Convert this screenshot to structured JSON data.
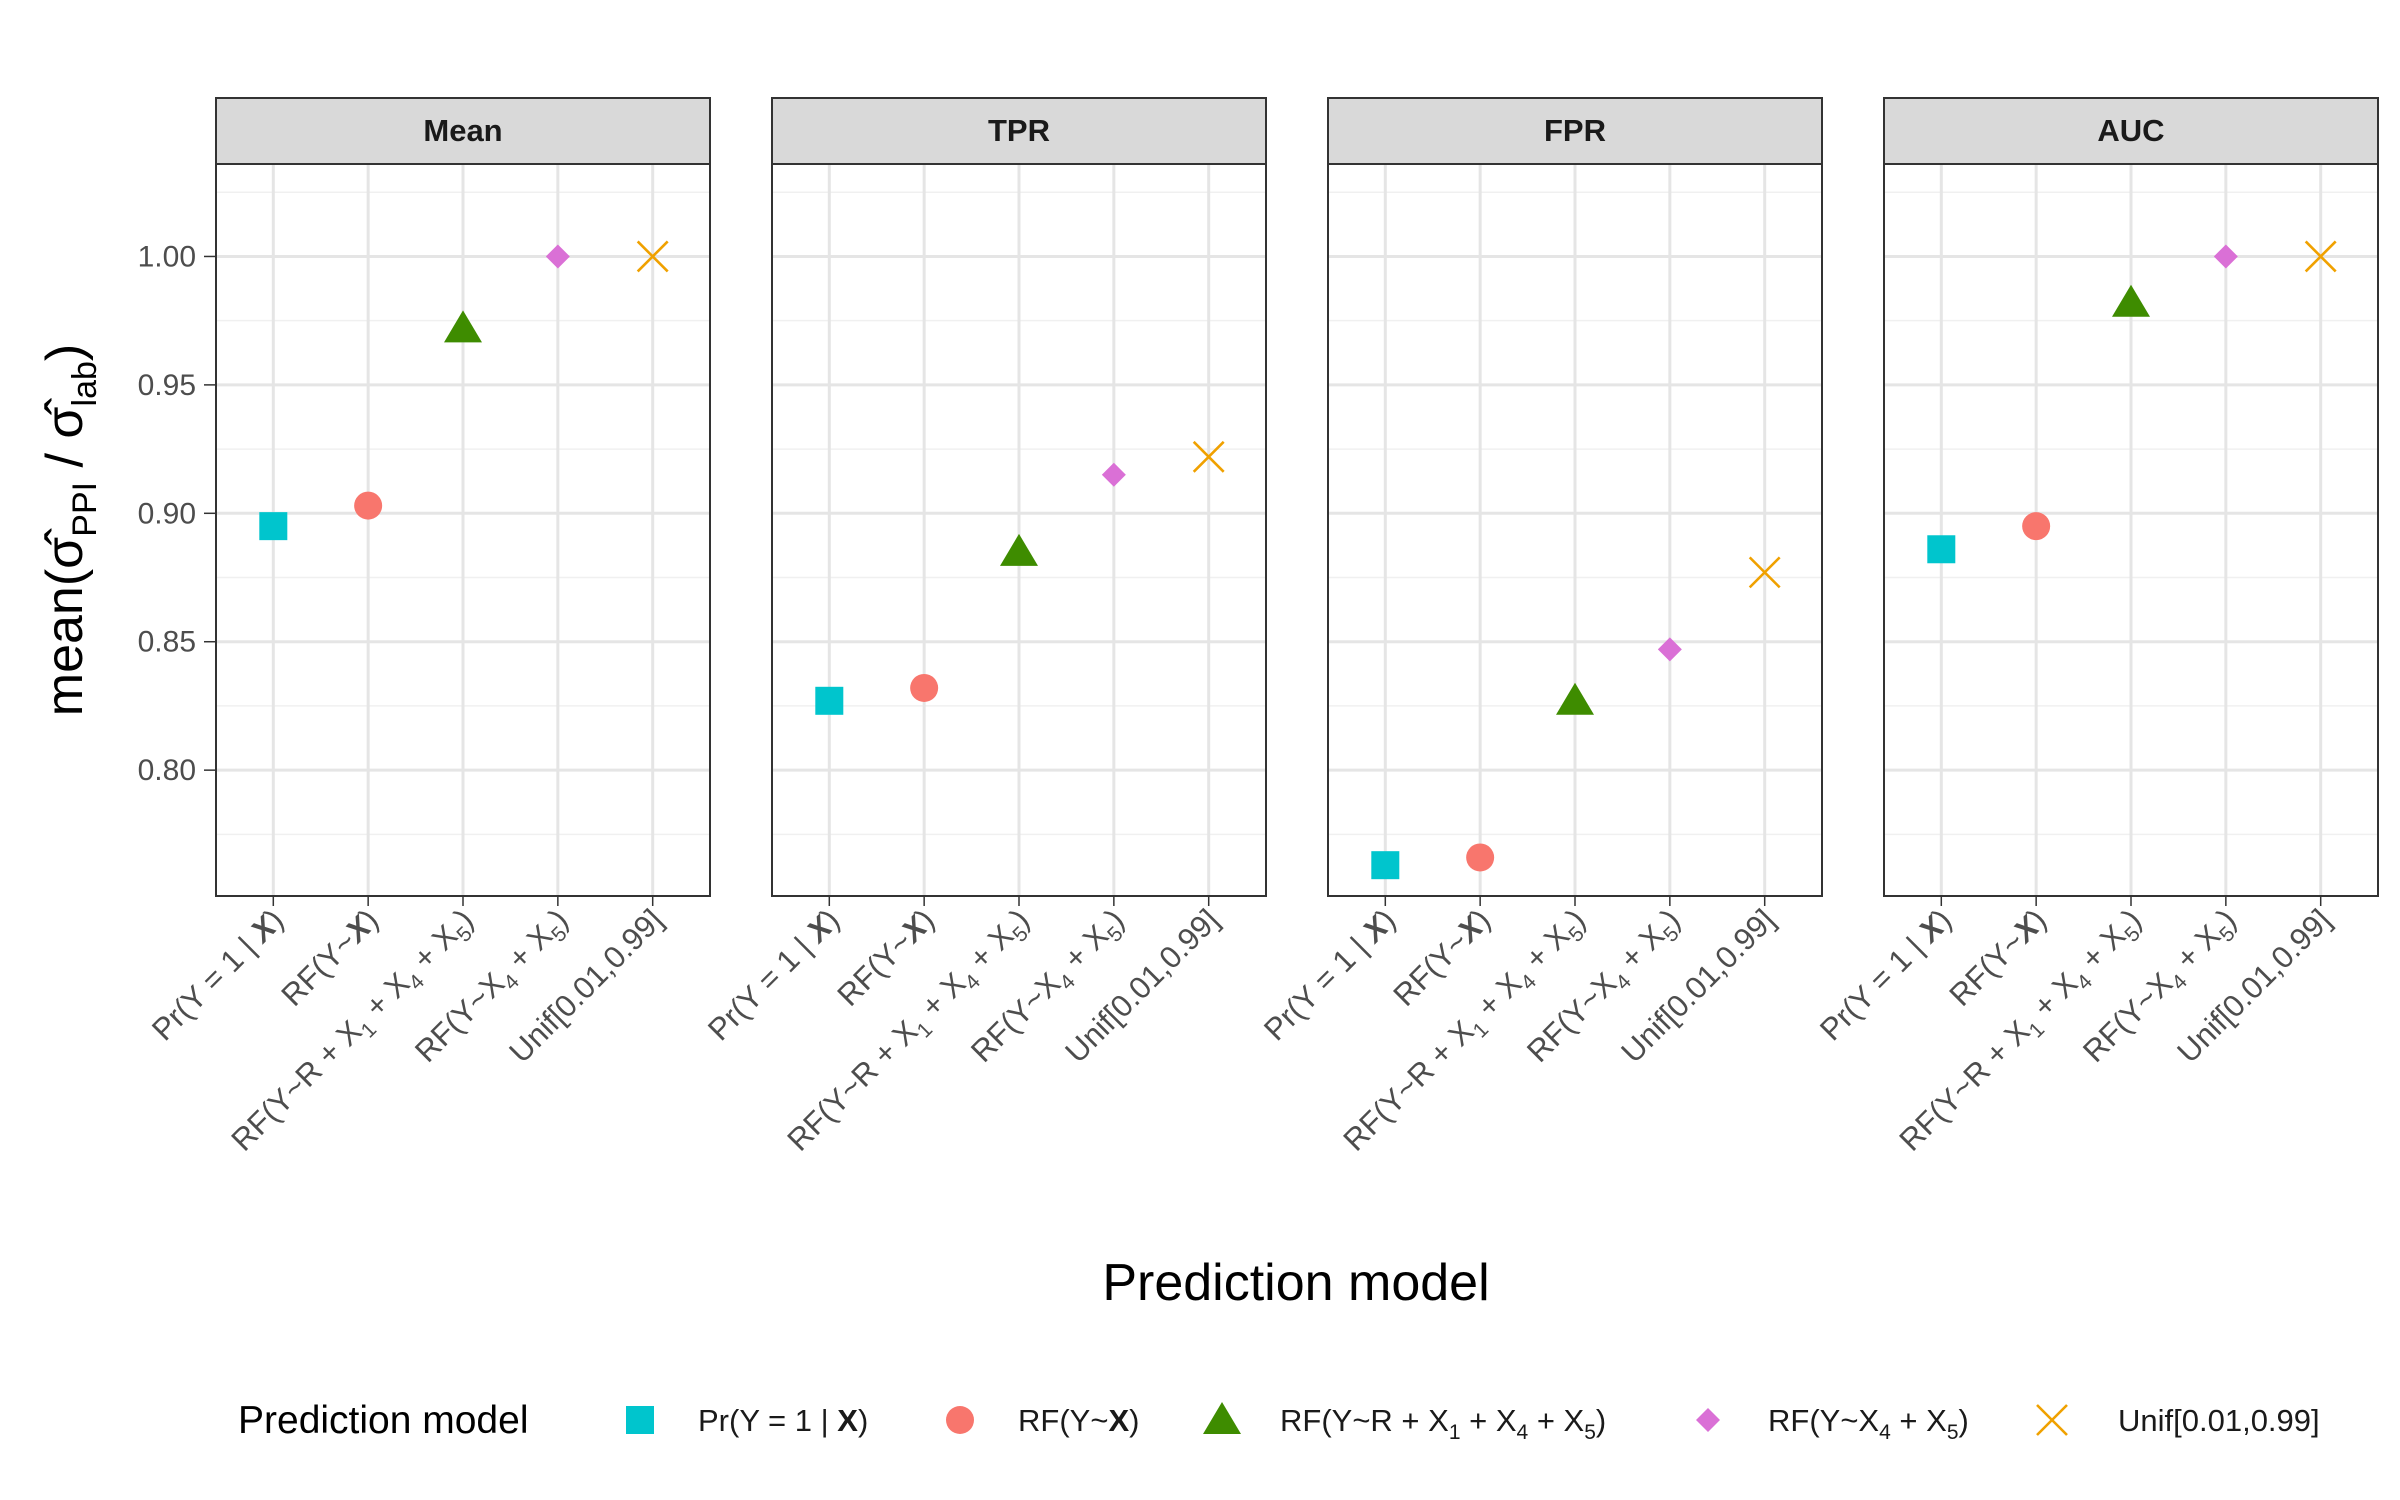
{
  "chart_data": {
    "type": "scatter",
    "facets": [
      "Mean",
      "TPR",
      "FPR",
      "AUC"
    ],
    "categories": [
      "Pr(Y = 1 | X)",
      "RF(Y~X)",
      "RF(Y~R + X1 + X4 + X5)",
      "RF(Y~X4 + X5)",
      "Unif[0.01,0.99]"
    ],
    "series": [
      {
        "name": "Pr(Y = 1 | X)",
        "shape": "square",
        "color": "#00C5CD",
        "values": {
          "Mean": 0.895,
          "TPR": 0.827,
          "FPR": 0.763,
          "AUC": 0.886
        }
      },
      {
        "name": "RF(Y~X)",
        "shape": "circle",
        "color": "#F8766D",
        "values": {
          "Mean": 0.903,
          "TPR": 0.832,
          "FPR": 0.766,
          "AUC": 0.895
        }
      },
      {
        "name": "RF(Y~R + X1 + X4 + X5)",
        "shape": "triangle",
        "color": "#3E8C00",
        "values": {
          "Mean": 0.972,
          "TPR": 0.885,
          "FPR": 0.827,
          "AUC": 0.982
        }
      },
      {
        "name": "RF(Y~X4 + X5)",
        "shape": "diamond",
        "color": "#DA70D6",
        "values": {
          "Mean": 1.0,
          "TPR": 0.915,
          "FPR": 0.847,
          "AUC": 1.0
        }
      },
      {
        "name": "Unif[0.01,0.99]",
        "shape": "cross",
        "color": "#F0A100",
        "values": {
          "Mean": 1.0,
          "TPR": 0.922,
          "FPR": 0.877,
          "AUC": 1.0
        }
      }
    ],
    "yticks": [
      "0.80",
      "0.85",
      "0.90",
      "0.95",
      "1.00"
    ],
    "ylim": [
      0.751,
      1.036
    ],
    "xlabel": "Prediction model",
    "ylabel": "mean(σ̂PPI / σ̂lab)",
    "legend_title": "Prediction model",
    "legend_position": "bottom"
  }
}
